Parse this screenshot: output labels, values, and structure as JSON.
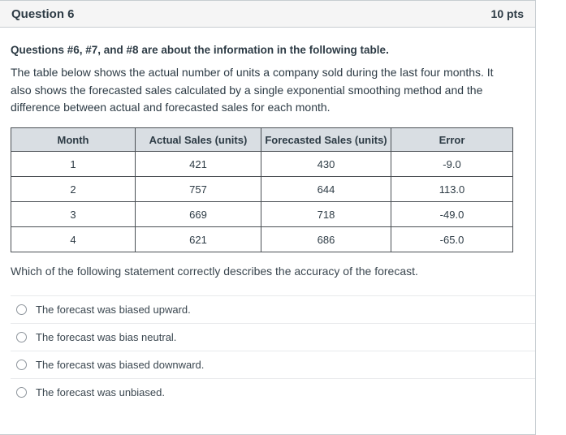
{
  "theme": {
    "text": "#2D3B45",
    "panel_border": "#C7CDD1",
    "header_bg": "#F5F5F5",
    "table_border": "#4A4F54",
    "table_header_bg": "#D9DEE3",
    "divider": "#E8EAEC"
  },
  "header": {
    "title": "Question 6",
    "points": "10 pts"
  },
  "body": {
    "intro_bold": "Questions #6, #7, and #8 are about the information in the following table.",
    "paragraph": "The table below shows the actual number of units a company sold during the last four months. It also shows the forecasted sales calculated by a single exponential smoothing method and the difference between actual and forecasted sales for each month.",
    "question": "Which of the following statement correctly describes the accuracy of the forecast."
  },
  "table": {
    "headers": [
      "Month",
      "Actual Sales (units)",
      "Forecasted Sales (units)",
      "Error"
    ],
    "rows": [
      [
        "1",
        "421",
        "430",
        "-9.0"
      ],
      [
        "2",
        "757",
        "644",
        "113.0"
      ],
      [
        "3",
        "669",
        "718",
        "-49.0"
      ],
      [
        "4",
        "621",
        "686",
        "-65.0"
      ]
    ]
  },
  "options": [
    "The forecast was biased upward.",
    "The forecast was bias neutral.",
    "The forecast was biased downward.",
    "The forecast was unbiased."
  ]
}
